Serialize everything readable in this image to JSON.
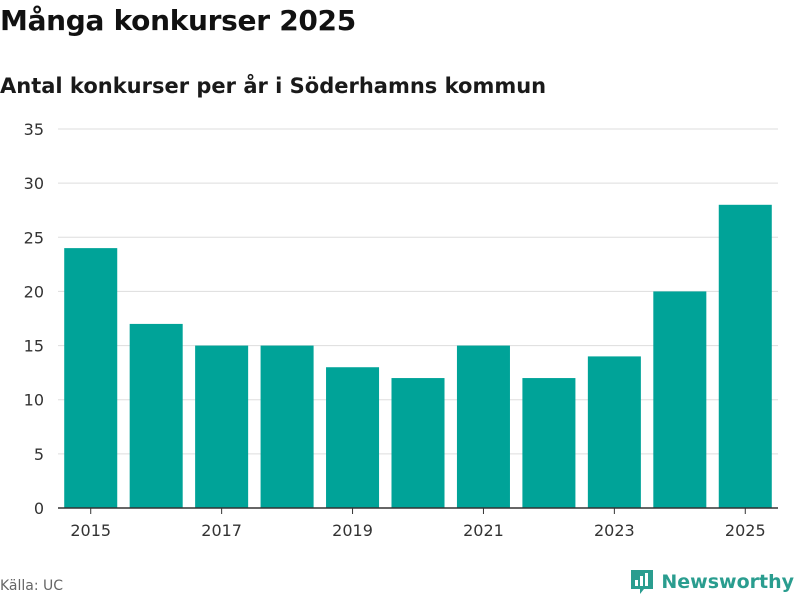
{
  "header": {
    "title": "Många konkurser 2025",
    "subtitle": "Antal konkurser per år i Söderhamns kommun"
  },
  "footer": {
    "source": "Källa: UC",
    "brand": "Newsworthy",
    "brand_icon": "newsworthy-logo-icon"
  },
  "colors": {
    "bar": "#00a398",
    "grid": "#dddddd",
    "axis": "#333333",
    "brand": "#2a9d8f"
  },
  "chart_data": {
    "type": "bar",
    "title": "Många konkurser 2025",
    "subtitle": "Antal konkurser per år i Söderhamns kommun",
    "categories": [
      "2015",
      "2016",
      "2017",
      "2018",
      "2019",
      "2020",
      "2021",
      "2022",
      "2023",
      "2024",
      "2025"
    ],
    "values": [
      24,
      17,
      15,
      15,
      13,
      12,
      15,
      12,
      14,
      20,
      28
    ],
    "x_tick_labels": [
      "2015",
      "2017",
      "2019",
      "2021",
      "2023",
      "2025"
    ],
    "y_ticks": [
      0,
      5,
      10,
      15,
      20,
      25,
      30,
      35
    ],
    "ylim": [
      0,
      35
    ],
    "xlabel": "",
    "ylabel": "",
    "grid": true,
    "legend": false
  }
}
